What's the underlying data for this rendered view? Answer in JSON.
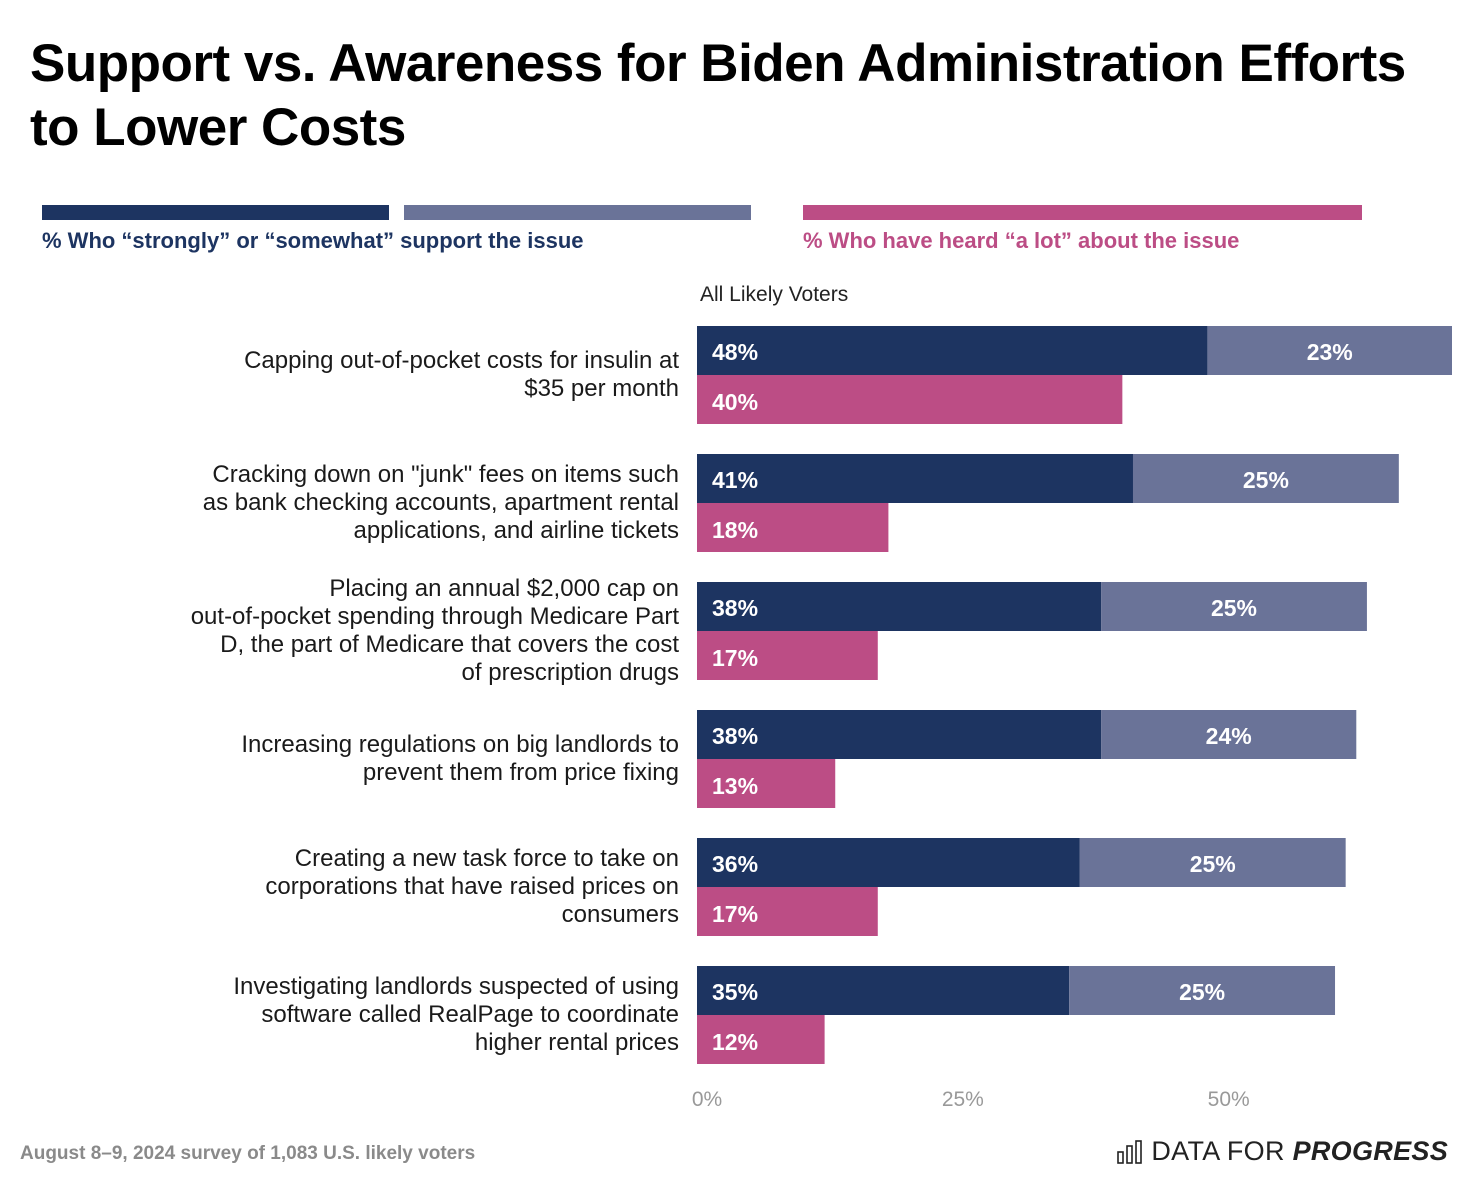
{
  "title": "Support vs. Awareness for Biden Administration Efforts to Lower Costs",
  "legend": {
    "support_label": "% Who “strongly” or “somewhat” support the issue",
    "heard_label": "% Who have heard “a lot” about the issue"
  },
  "colors": {
    "strongly": "#1d3461",
    "somewhat": "#6a7398",
    "heard": "#bc4d85"
  },
  "group_label": "All Likely Voters",
  "footer": {
    "note": "August 8–9, 2024 survey of 1,083 U.S. likely voters",
    "brand_prefix": "DATA FOR",
    "brand_emphasis": "PROGRESS",
    "brand_icon": "bar-chart-icon"
  },
  "chart_data": {
    "type": "bar",
    "orientation": "horizontal",
    "categories": [
      "Capping out-of-pocket costs for insulin at $35 per month",
      "Cracking down on \"junk\" fees on items such as bank checking accounts, apartment rental applications, and airline tickets",
      "Placing an annual $2,000 cap on out-of-pocket spending through Medicare Part D, the part of Medicare that covers the cost of prescription drugs",
      "Increasing regulations on big landlords to prevent them from price fixing",
      "Creating a new task force to take on corporations that have raised prices on consumers",
      "Investigating landlords suspected of using software called RealPage to coordinate higher rental prices"
    ],
    "series": [
      {
        "name": "strongly support",
        "values": [
          48,
          41,
          38,
          38,
          36,
          35
        ],
        "stack": "support"
      },
      {
        "name": "somewhat support",
        "values": [
          23,
          25,
          25,
          24,
          25,
          25
        ],
        "stack": "support"
      },
      {
        "name": "heard a lot",
        "values": [
          40,
          18,
          17,
          13,
          17,
          12
        ],
        "stack": "heard"
      }
    ],
    "value_labels": {
      "strongly": [
        "48%",
        "41%",
        "38%",
        "38%",
        "36%",
        "35%"
      ],
      "somewhat": [
        "23%",
        "25%",
        "25%",
        "24%",
        "25%",
        "25%"
      ],
      "heard": [
        "40%",
        "18%",
        "17%",
        "13%",
        "17%",
        "12%"
      ]
    },
    "x_ticks": [
      0,
      25,
      50
    ],
    "x_tick_labels": [
      "0%",
      "25%",
      "50%"
    ],
    "xlim": [
      0,
      71
    ]
  }
}
